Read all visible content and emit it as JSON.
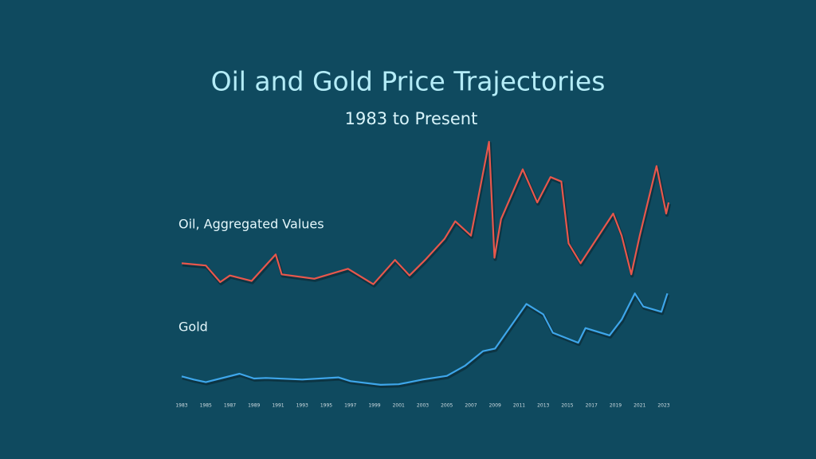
{
  "title": "Oil and Gold Price Trajectories",
  "subtitle": "1983 to Present",
  "chart_data": [
    {
      "type": "line",
      "title": "Oil, Aggregated Values",
      "color": "#e8574c",
      "x": [
        1983,
        1985,
        1986.2,
        1987,
        1988.8,
        1990.8,
        1991.3,
        1994,
        1996.8,
        1998.9,
        2000.7,
        2001.9,
        2003.2,
        2004.8,
        2005.7,
        2007,
        2008.5,
        2008.95,
        2009.5,
        2011.3,
        2012.5,
        2013.6,
        2014.5,
        2015.1,
        2016.1,
        2018.8,
        2019.5,
        2020.3,
        2021,
        2022.4,
        2023.2,
        2023.4
      ],
      "values": [
        30,
        28,
        13,
        19,
        14,
        38,
        20,
        16,
        25,
        11,
        33,
        19,
        33,
        52,
        68,
        55,
        140,
        35,
        70,
        115,
        85,
        108,
        104,
        48,
        30,
        75,
        55,
        20,
        55,
        118,
        75,
        85
      ],
      "xlim": [
        1983,
        2023
      ],
      "ylim": [
        0,
        150
      ]
    },
    {
      "type": "line",
      "title": "Gold",
      "color": "#3ea6ea",
      "x": [
        1983,
        1984,
        1985,
        1987.8,
        1989,
        1990,
        1993,
        1996,
        1997,
        1999.5,
        2001,
        2003,
        2005,
        2006.5,
        2008,
        2009,
        2011.6,
        2013,
        2013.8,
        2015.9,
        2016.5,
        2018.5,
        2019.5,
        2020.6,
        2021.3,
        2022.8,
        2023.3
      ],
      "values": [
        420,
        360,
        310,
        470,
        380,
        390,
        360,
        400,
        330,
        260,
        270,
        360,
        430,
        620,
        900,
        950,
        1800,
        1600,
        1250,
        1060,
        1340,
        1200,
        1500,
        2000,
        1750,
        1650,
        2000
      ],
      "xlim": [
        1983,
        2023
      ],
      "ylim": [
        0,
        2200
      ],
      "xticks": [
        1983,
        1985,
        1987,
        1989,
        1991,
        1993,
        1995,
        1997,
        1999,
        2001,
        2003,
        2005,
        2007,
        2009,
        2011,
        2013,
        2015,
        2017,
        2019,
        2021,
        2023
      ]
    }
  ]
}
